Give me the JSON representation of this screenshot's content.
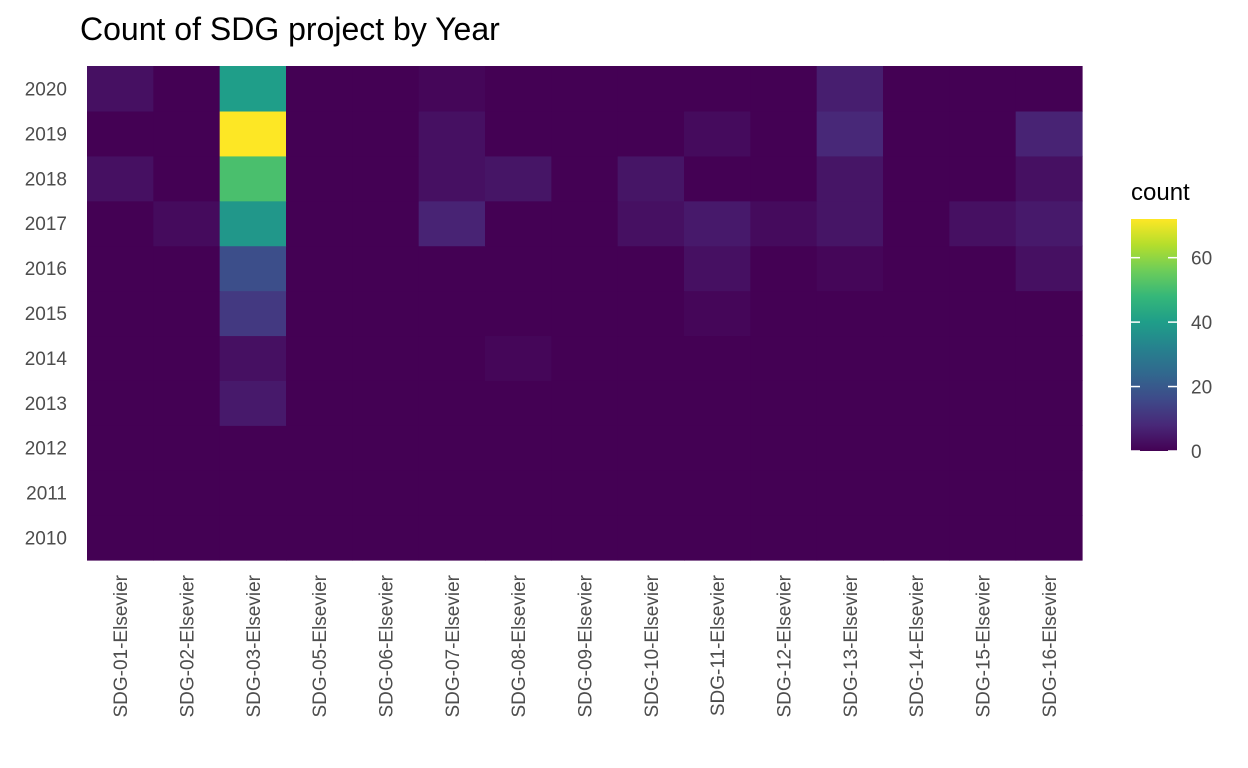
{
  "chart_data": {
    "type": "heatmap",
    "title": "Count of SDG project by Year",
    "xlabel": "",
    "ylabel": "",
    "x_categories": [
      "SDG-01-Elsevier",
      "SDG-02-Elsevier",
      "SDG-03-Elsevier",
      "SDG-05-Elsevier",
      "SDG-06-Elsevier",
      "SDG-07-Elsevier",
      "SDG-08-Elsevier",
      "SDG-09-Elsevier",
      "SDG-10-Elsevier",
      "SDG-11-Elsevier",
      "SDG-12-Elsevier",
      "SDG-13-Elsevier",
      "SDG-14-Elsevier",
      "SDG-15-Elsevier",
      "SDG-16-Elsevier"
    ],
    "y_categories": [
      "2010",
      "2011",
      "2012",
      "2013",
      "2014",
      "2015",
      "2016",
      "2017",
      "2018",
      "2019",
      "2020"
    ],
    "values": [
      [
        0,
        0,
        0,
        0,
        0,
        0,
        0,
        0,
        0,
        0,
        0,
        0,
        0,
        0,
        0
      ],
      [
        0,
        0,
        0,
        0,
        0,
        0,
        0,
        0,
        0,
        0,
        0,
        0,
        0,
        0,
        0
      ],
      [
        0,
        0,
        0,
        0,
        0,
        0,
        0,
        0,
        0,
        0,
        0,
        0,
        0,
        0,
        0
      ],
      [
        0,
        0,
        5,
        0,
        0,
        0,
        0,
        0,
        0,
        0,
        0,
        0,
        0,
        0,
        0
      ],
      [
        0,
        0,
        3,
        0,
        0,
        0,
        1,
        0,
        0,
        0,
        0,
        0,
        0,
        0,
        0
      ],
      [
        0,
        0,
        12,
        0,
        0,
        0,
        0,
        0,
        0,
        1,
        0,
        0,
        0,
        0,
        0
      ],
      [
        0,
        0,
        17,
        0,
        0,
        0,
        0,
        0,
        0,
        3,
        0,
        1,
        0,
        0,
        3
      ],
      [
        0,
        2,
        38,
        0,
        0,
        7,
        0,
        0,
        3,
        5,
        2,
        4,
        0,
        3,
        5
      ],
      [
        3,
        0,
        51,
        0,
        0,
        3,
        4,
        0,
        4,
        0,
        0,
        4,
        0,
        0,
        3
      ],
      [
        0,
        0,
        72,
        0,
        0,
        3,
        0,
        0,
        0,
        2,
        0,
        8,
        0,
        0,
        7
      ],
      [
        3,
        0,
        40,
        0,
        0,
        1,
        0,
        0,
        0,
        0,
        0,
        6,
        0,
        0,
        0
      ]
    ],
    "color_scale": {
      "name": "viridis",
      "min": 0,
      "max": 72,
      "stops": [
        "#440154",
        "#482878",
        "#3E4A89",
        "#31688E",
        "#26828E",
        "#1F9E89",
        "#35B779",
        "#6DCD59",
        "#B4DE2C",
        "#FDE725"
      ]
    },
    "legend": {
      "title": "count",
      "ticks": [
        0,
        20,
        40,
        60
      ],
      "tick_labels": [
        "0",
        "20",
        "40",
        "60"
      ],
      "placement": "right"
    },
    "grid": true
  }
}
